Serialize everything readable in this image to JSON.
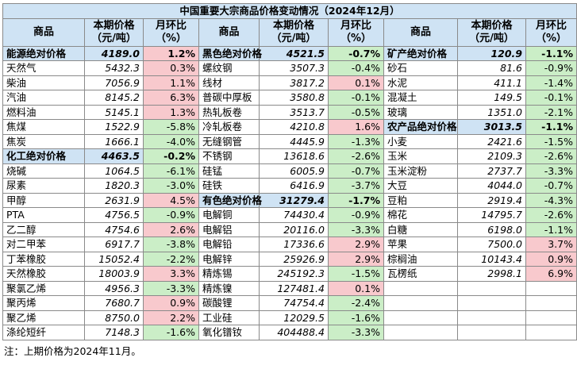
{
  "title": "中国重要大宗商品价格变动情况（2024年12月）",
  "headers": {
    "name": "商品",
    "price": "本期价格（元/吨）",
    "change": "月环比（%）"
  },
  "columns": [
    [
      {
        "name": "能源绝对价格",
        "price": "4189.0",
        "change": "1.2%",
        "type": "cat"
      },
      {
        "name": "天然气",
        "price": "5432.3",
        "change": "0.3%"
      },
      {
        "name": "柴油",
        "price": "7056.9",
        "change": "1.1%"
      },
      {
        "name": "汽油",
        "price": "8145.2",
        "change": "6.3%"
      },
      {
        "name": "燃料油",
        "price": "5145.1",
        "change": "1.3%"
      },
      {
        "name": "焦煤",
        "price": "1522.9",
        "change": "-5.8%"
      },
      {
        "name": "焦炭",
        "price": "1666.1",
        "change": "-4.0%"
      },
      {
        "name": "化工绝对价格",
        "price": "4463.5",
        "change": "-0.2%",
        "type": "cat"
      },
      {
        "name": "烧碱",
        "price": "1064.5",
        "change": "-6.1%"
      },
      {
        "name": "尿素",
        "price": "1820.3",
        "change": "-3.0%"
      },
      {
        "name": "甲醇",
        "price": "2631.9",
        "change": "4.5%"
      },
      {
        "name": "PTA",
        "price": "4756.5",
        "change": "-0.9%"
      },
      {
        "name": "乙二醇",
        "price": "4754.6",
        "change": "2.6%"
      },
      {
        "name": "对二甲苯",
        "price": "6917.7",
        "change": "-3.8%"
      },
      {
        "name": "丁苯橡胶",
        "price": "15052.4",
        "change": "-2.2%"
      },
      {
        "name": "天然橡胶",
        "price": "18003.9",
        "change": "3.3%"
      },
      {
        "name": "聚氯乙烯",
        "price": "4956.3",
        "change": "-3.3%"
      },
      {
        "name": "聚丙烯",
        "price": "7680.7",
        "change": "0.9%"
      },
      {
        "name": "聚乙烯",
        "price": "8750.0",
        "change": "2.2%"
      },
      {
        "name": "涤纶短纤",
        "price": "7148.3",
        "change": "-1.6%"
      }
    ],
    [
      {
        "name": "黑色绝对价格",
        "price": "4521.5",
        "change": "-0.7%",
        "type": "cat"
      },
      {
        "name": "螺纹钢",
        "price": "3507.3",
        "change": "-0.4%"
      },
      {
        "name": "线材",
        "price": "3817.2",
        "change": "0.1%"
      },
      {
        "name": "普碳中厚板",
        "price": "3580.8",
        "change": "-0.1%"
      },
      {
        "name": "热轧板卷",
        "price": "3513.7",
        "change": "-0.5%"
      },
      {
        "name": "冷轧板卷",
        "price": "4210.8",
        "change": "1.6%"
      },
      {
        "name": "无缝钢管",
        "price": "4445.9",
        "change": "-1.3%"
      },
      {
        "name": "不锈钢",
        "price": "13618.6",
        "change": "-2.6%"
      },
      {
        "name": "硅锰",
        "price": "6005.9",
        "change": "-0.7%"
      },
      {
        "name": "硅铁",
        "price": "6416.9",
        "change": "-3.7%"
      },
      {
        "name": "有色绝对价格",
        "price": "31279.4",
        "change": "-1.7%",
        "type": "cat"
      },
      {
        "name": "电解铜",
        "price": "74430.4",
        "change": "-0.9%"
      },
      {
        "name": "电解铝",
        "price": "20116.0",
        "change": "-3.3%"
      },
      {
        "name": "电解铅",
        "price": "17336.6",
        "change": "2.9%"
      },
      {
        "name": "电解锌",
        "price": "25926.9",
        "change": "2.9%"
      },
      {
        "name": "精炼锡",
        "price": "245192.3",
        "change": "-1.5%"
      },
      {
        "name": "精炼镍",
        "price": "127481.4",
        "change": "0.1%"
      },
      {
        "name": "碳酸锂",
        "price": "74754.4",
        "change": "-2.4%"
      },
      {
        "name": "工业硅",
        "price": "12029.5",
        "change": "-1.6%"
      },
      {
        "name": "氧化镨钕",
        "price": "404488.4",
        "change": "-3.3%"
      }
    ],
    [
      {
        "name": "矿产绝对价格",
        "price": "120.9",
        "change": "-1.1%",
        "type": "cat"
      },
      {
        "name": "砂石",
        "price": "81.6",
        "change": "-0.9%"
      },
      {
        "name": "水泥",
        "price": "411.1",
        "change": "-1.4%"
      },
      {
        "name": "混凝土",
        "price": "149.5",
        "change": "-0.1%"
      },
      {
        "name": "玻璃",
        "price": "1351.0",
        "change": "-2.1%"
      },
      {
        "name": "农产品绝对价格",
        "price": "3013.5",
        "change": "-1.1%",
        "type": "cat"
      },
      {
        "name": "小麦",
        "price": "2421.6",
        "change": "-1.5%"
      },
      {
        "name": "玉米",
        "price": "2109.3",
        "change": "-2.6%"
      },
      {
        "name": "玉米淀粉",
        "price": "2737.7",
        "change": "-3.3%"
      },
      {
        "name": "大豆",
        "price": "4044.0",
        "change": "-0.7%"
      },
      {
        "name": "豆粕",
        "price": "2919.4",
        "change": "-4.3%"
      },
      {
        "name": "棉花",
        "price": "14795.7",
        "change": "-2.6%"
      },
      {
        "name": "白糖",
        "price": "6198.0",
        "change": "-1.1%"
      },
      {
        "name": "苹果",
        "price": "7500.0",
        "change": "3.7%"
      },
      {
        "name": "棕榈油",
        "price": "10143.4",
        "change": "0.9%"
      },
      {
        "name": "瓦楞纸",
        "price": "2998.1",
        "change": "6.9%"
      }
    ]
  ],
  "note": "注：上期价格为2024年11月。"
}
